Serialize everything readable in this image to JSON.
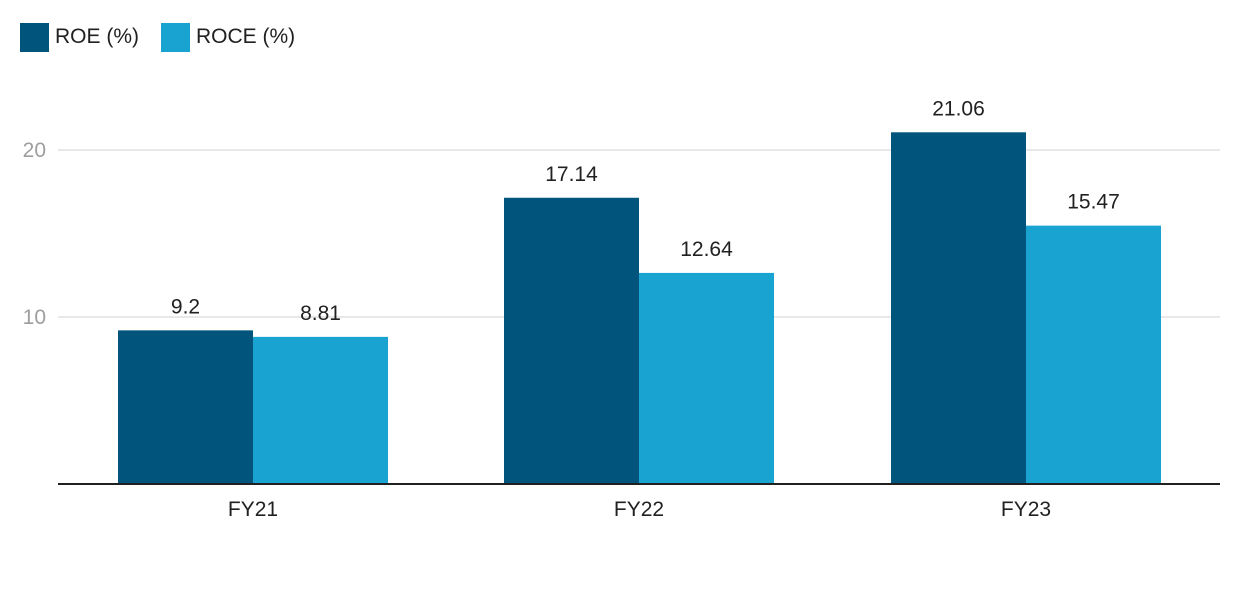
{
  "chart_data": {
    "type": "bar",
    "categories": [
      "FY21",
      "FY22",
      "FY23"
    ],
    "series": [
      {
        "name": "ROE (%)",
        "values": [
          9.2,
          17.14,
          21.06
        ],
        "color": "#01557d"
      },
      {
        "name": "ROCE (%)",
        "values": [
          8.81,
          12.64,
          15.47
        ],
        "color": "#19a3d0"
      }
    ],
    "data_labels": [
      [
        "9.2",
        "17.14",
        "21.06"
      ],
      [
        "8.81",
        "12.64",
        "15.47"
      ]
    ],
    "ylim": [
      0,
      24
    ],
    "y_ticks": [
      10,
      20
    ],
    "y_tick_labels": [
      "10",
      "20"
    ],
    "grid": true,
    "legend_position": "top-left",
    "title": "",
    "xlabel": "",
    "ylabel": ""
  }
}
